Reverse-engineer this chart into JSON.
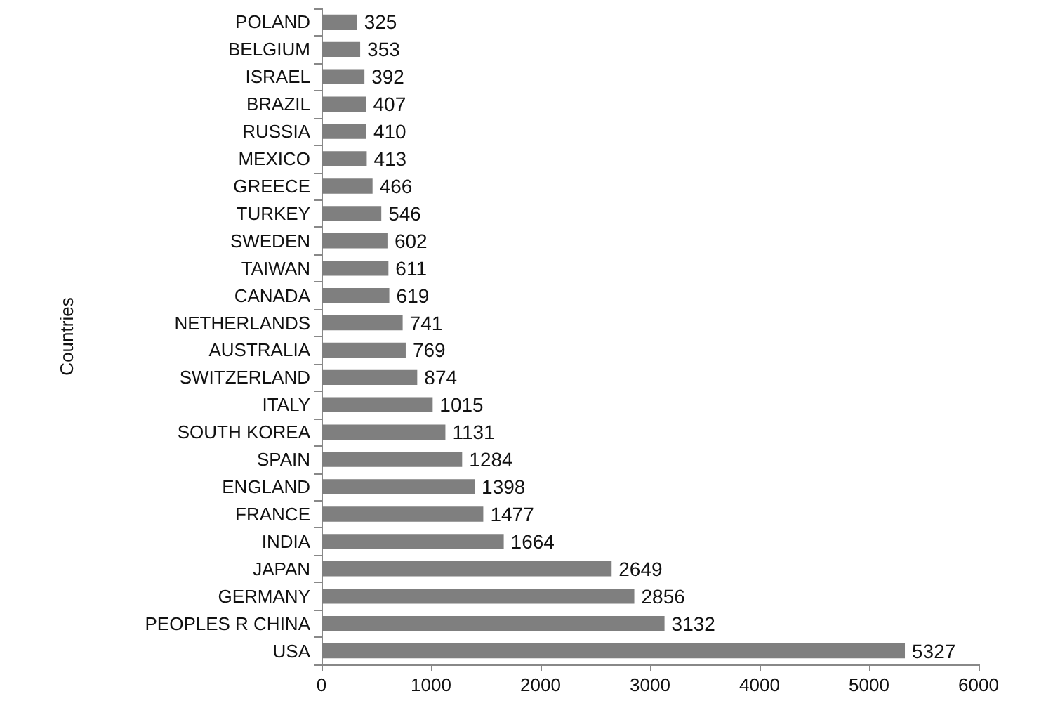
{
  "chart_data": {
    "type": "bar",
    "orientation": "horizontal",
    "ylabel": "Countries",
    "categories": [
      "POLAND",
      "BELGIUM",
      "ISRAEL",
      "BRAZIL",
      "RUSSIA",
      "MEXICO",
      "GREECE",
      "TURKEY",
      "SWEDEN",
      "TAIWAN",
      "CANADA",
      "NETHERLANDS",
      "AUSTRALIA",
      "SWITZERLAND",
      "ITALY",
      "SOUTH KOREA",
      "SPAIN",
      "ENGLAND",
      "FRANCE",
      "INDIA",
      "JAPAN",
      "GERMANY",
      "PEOPLES R CHINA",
      "USA"
    ],
    "values": [
      325,
      353,
      392,
      407,
      410,
      413,
      466,
      546,
      602,
      611,
      619,
      741,
      769,
      874,
      1015,
      1131,
      1284,
      1398,
      1477,
      1664,
      2649,
      2856,
      3132,
      5327
    ],
    "color": "#7f7f7f",
    "data_labels": true,
    "xlim": [
      0,
      6000
    ],
    "xticks": [
      0,
      1000,
      2000,
      3000,
      4000,
      5000,
      6000
    ],
    "grid": false
  }
}
